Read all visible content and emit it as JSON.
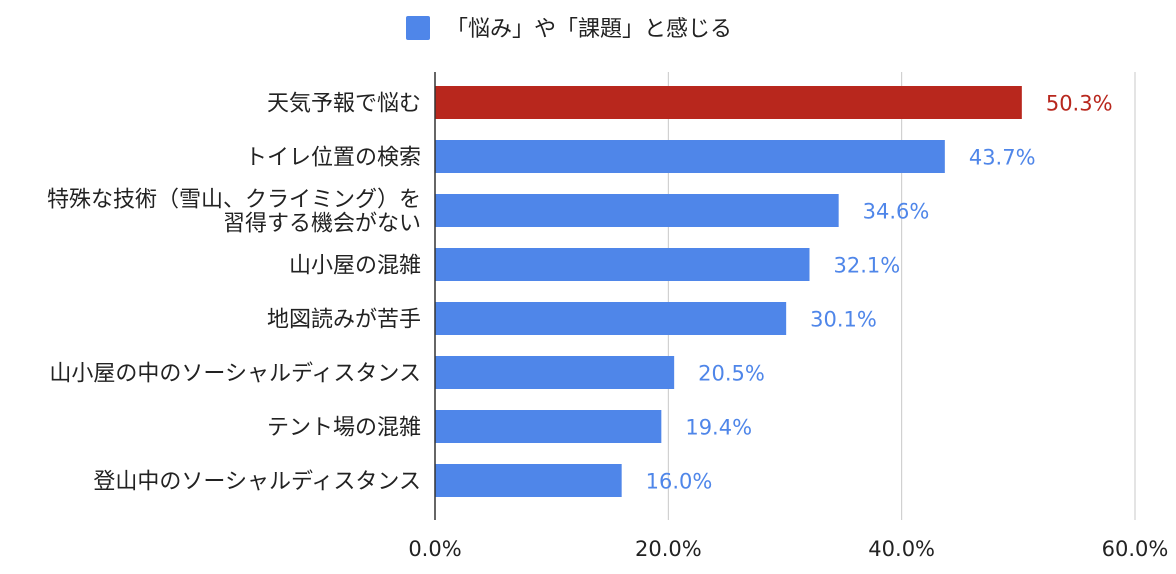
{
  "chart_data": {
    "type": "bar",
    "orientation": "horizontal",
    "legend": {
      "position": "top-center",
      "series_name": "「悩み」や「課題」と感じる",
      "color": "#4f86e9"
    },
    "categories": [
      [
        "天気予報で悩む"
      ],
      [
        "トイレ位置の検索"
      ],
      [
        "特殊な技術（雪山、クライミング）を",
        "習得する機会がない"
      ],
      [
        "山小屋の混雑"
      ],
      [
        "地図読みが苦手"
      ],
      [
        "山小屋の中のソーシャルディスタンス"
      ],
      [
        "テント場の混雑"
      ],
      [
        "登山中のソーシャルディスタンス"
      ]
    ],
    "series": [
      {
        "name": "「悩み」や「課題」と感じる",
        "values": [
          50.3,
          43.7,
          34.6,
          32.1,
          30.1,
          20.5,
          19.4,
          16.0
        ]
      }
    ],
    "value_labels": [
      "50.3%",
      "43.7%",
      "34.6%",
      "32.1%",
      "30.1%",
      "20.5%",
      "19.4%",
      "16.0%"
    ],
    "bar_colors": [
      "#b8271d",
      "#4f86e9",
      "#4f86e9",
      "#4f86e9",
      "#4f86e9",
      "#4f86e9",
      "#4f86e9",
      "#4f86e9"
    ],
    "label_colors": [
      "#b8271d",
      "#4f86e9",
      "#4f86e9",
      "#4f86e9",
      "#4f86e9",
      "#4f86e9",
      "#4f86e9",
      "#4f86e9"
    ],
    "x_ticks": [
      "0.0%",
      "20.0%",
      "40.0%",
      "60.0%"
    ],
    "xlim": [
      0,
      60
    ],
    "grid": "vertical",
    "colors": {
      "axis": "#333333",
      "grid": "#c8c8c8",
      "text": "#222222"
    }
  }
}
